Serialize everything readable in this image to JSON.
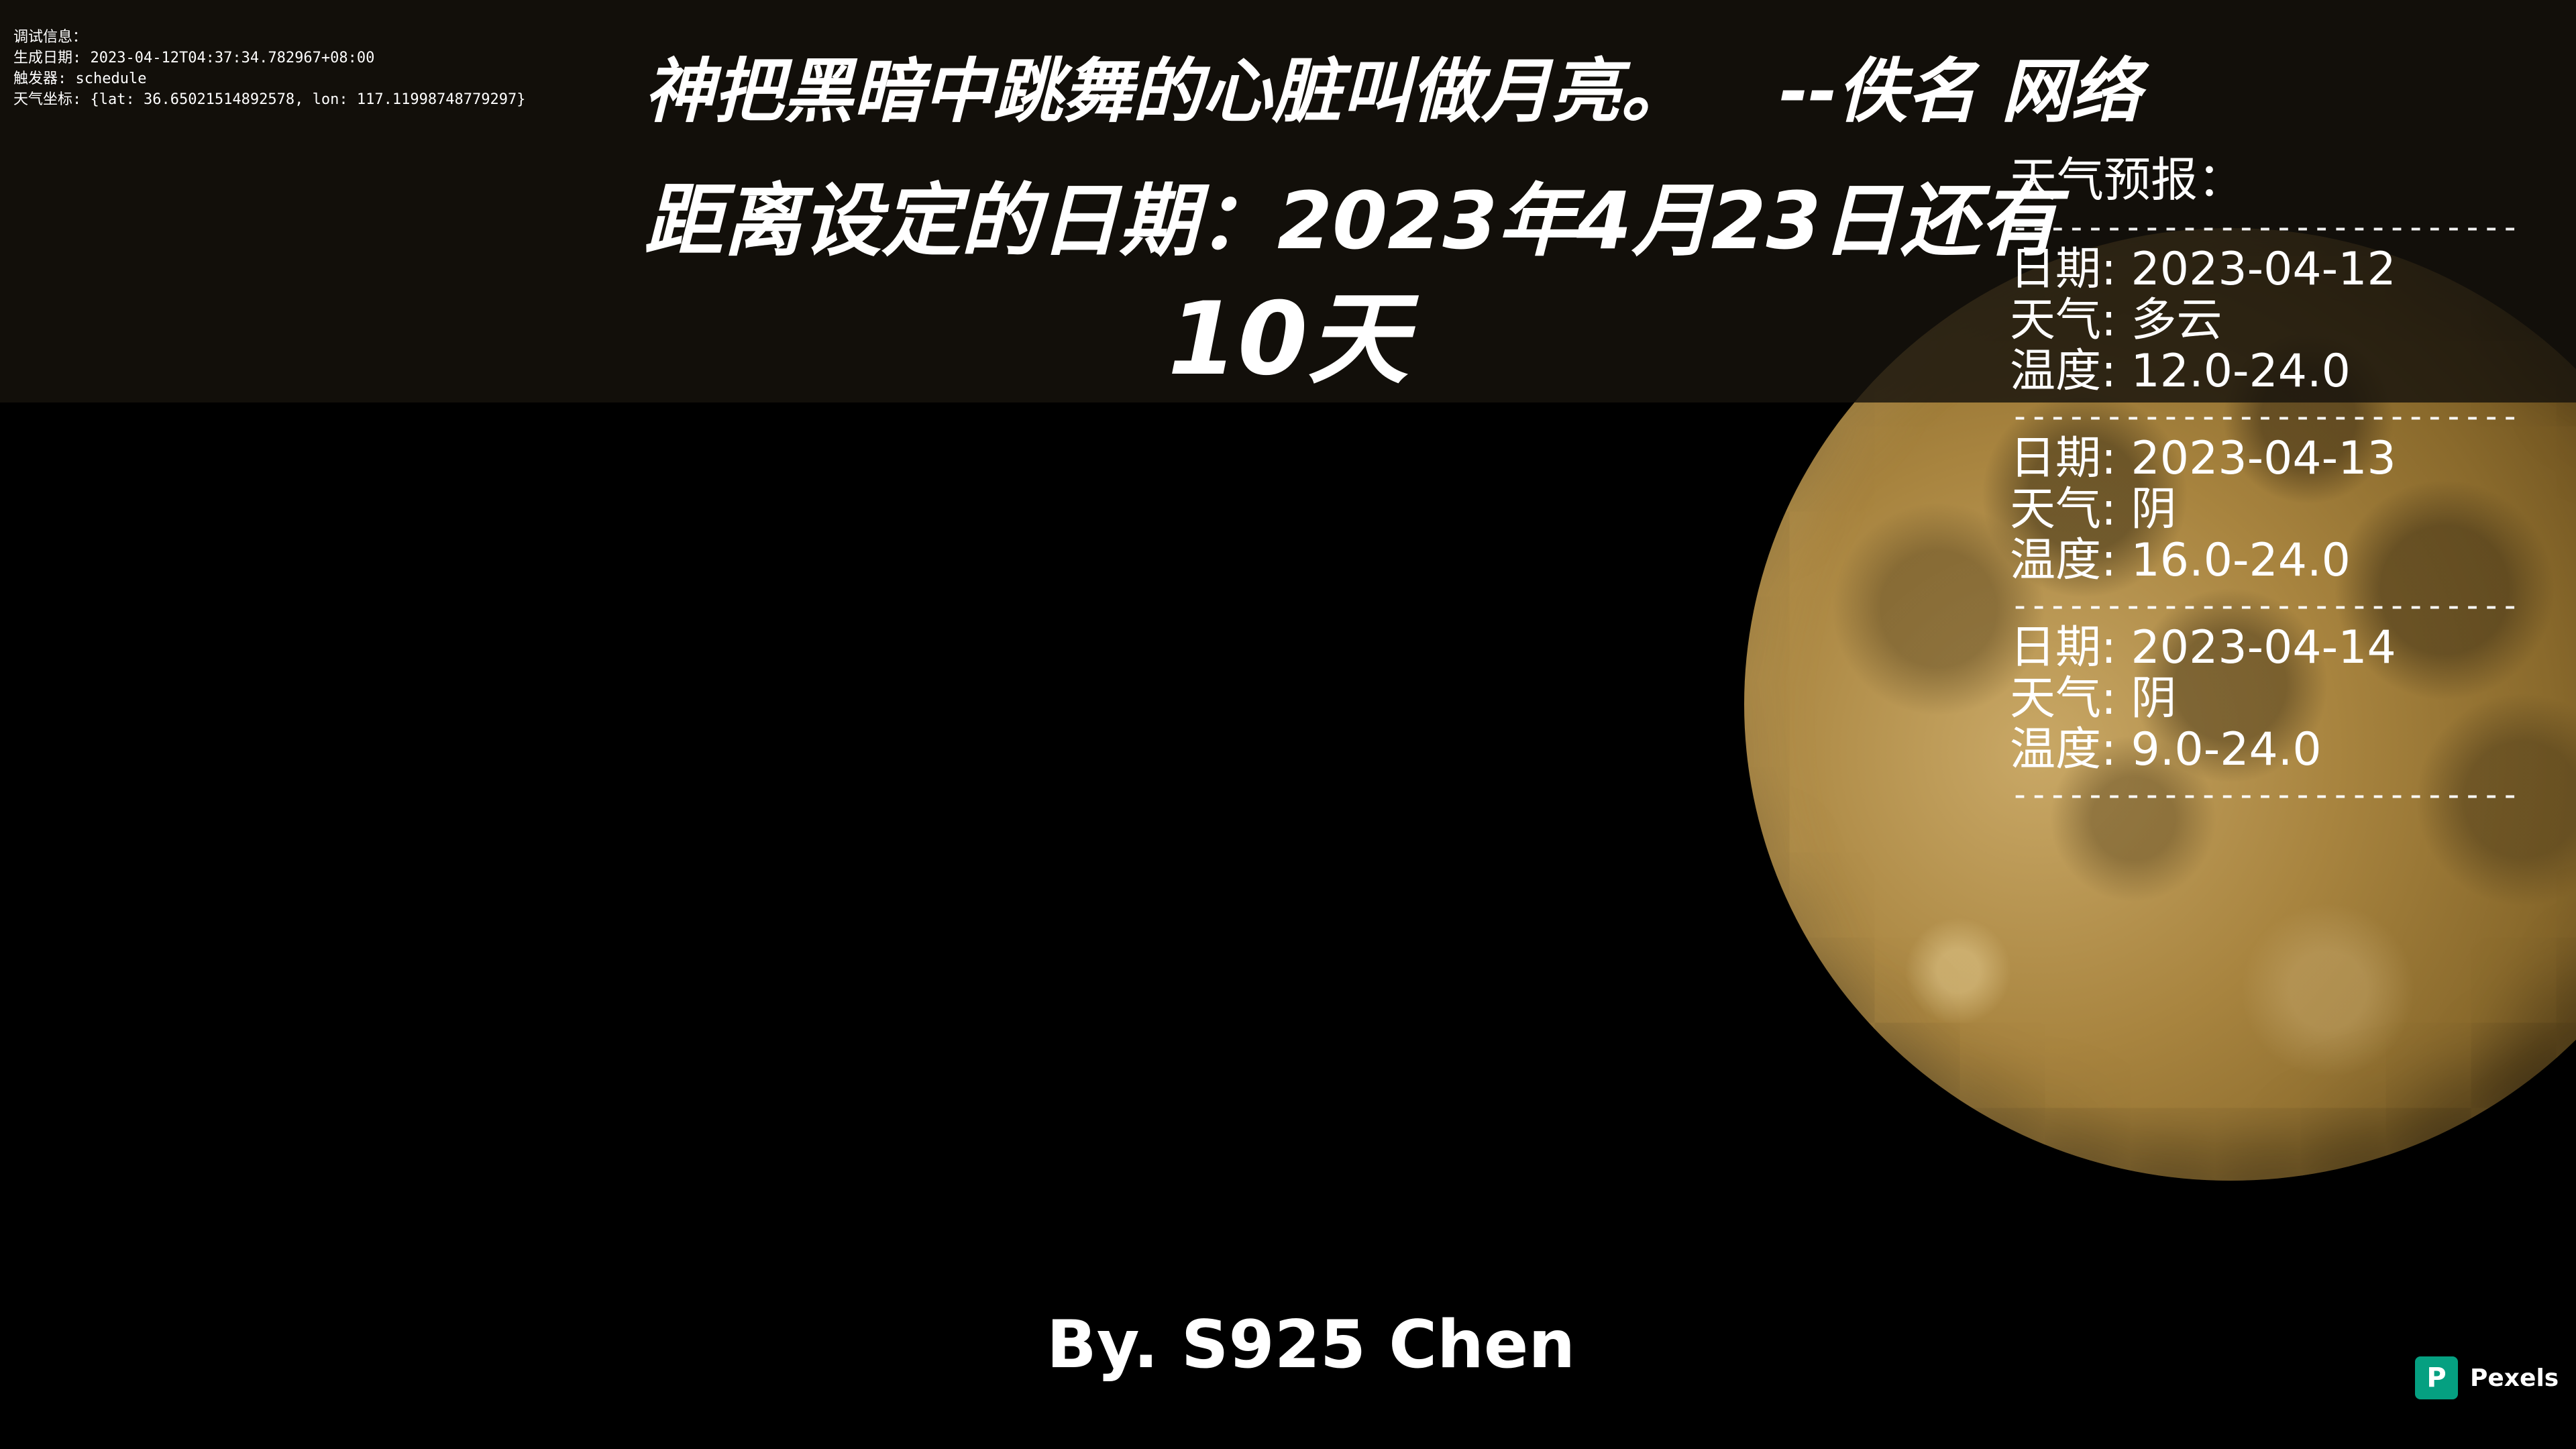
{
  "colors": {
    "background": "#000000",
    "band": "#16120c",
    "text": "#ffffff",
    "moon": "#a8843f",
    "pexels_brand": "#05a081"
  },
  "debug": {
    "title": "调试信息：",
    "generated_label": "生成日期:",
    "generated_value": "2023-04-12T04:37:34.782967+08:00",
    "trigger_label": "触发器:",
    "trigger_value": "schedule",
    "coords_label": "天气坐标:",
    "coords_value": "{lat: 36.65021514892578, lon: 117.11998748779297}"
  },
  "quote": {
    "text": "神把黑暗中跳舞的心脏叫做月亮。",
    "attribution": "--佚名 网络"
  },
  "countdown": {
    "prefix": "距离设定的日期：",
    "target_date": "2023年4月23日",
    "suffix": "还有",
    "days_left": "10天"
  },
  "weather": {
    "title": "天气预报：",
    "divider": "------------------------------",
    "date_label": "日期:",
    "weather_label": "天气:",
    "temp_label": "温度:",
    "days": [
      {
        "date": "2023-04-12",
        "condition": "多云",
        "temp": "12.0-24.0"
      },
      {
        "date": "2023-04-13",
        "condition": "阴",
        "temp": "16.0-24.0"
      },
      {
        "date": "2023-04-14",
        "condition": "阴",
        "temp": "9.0-24.0"
      }
    ]
  },
  "author": "By. S925 Chen",
  "watermark": {
    "icon": "pexels-logo-icon",
    "label": "Pexels"
  }
}
